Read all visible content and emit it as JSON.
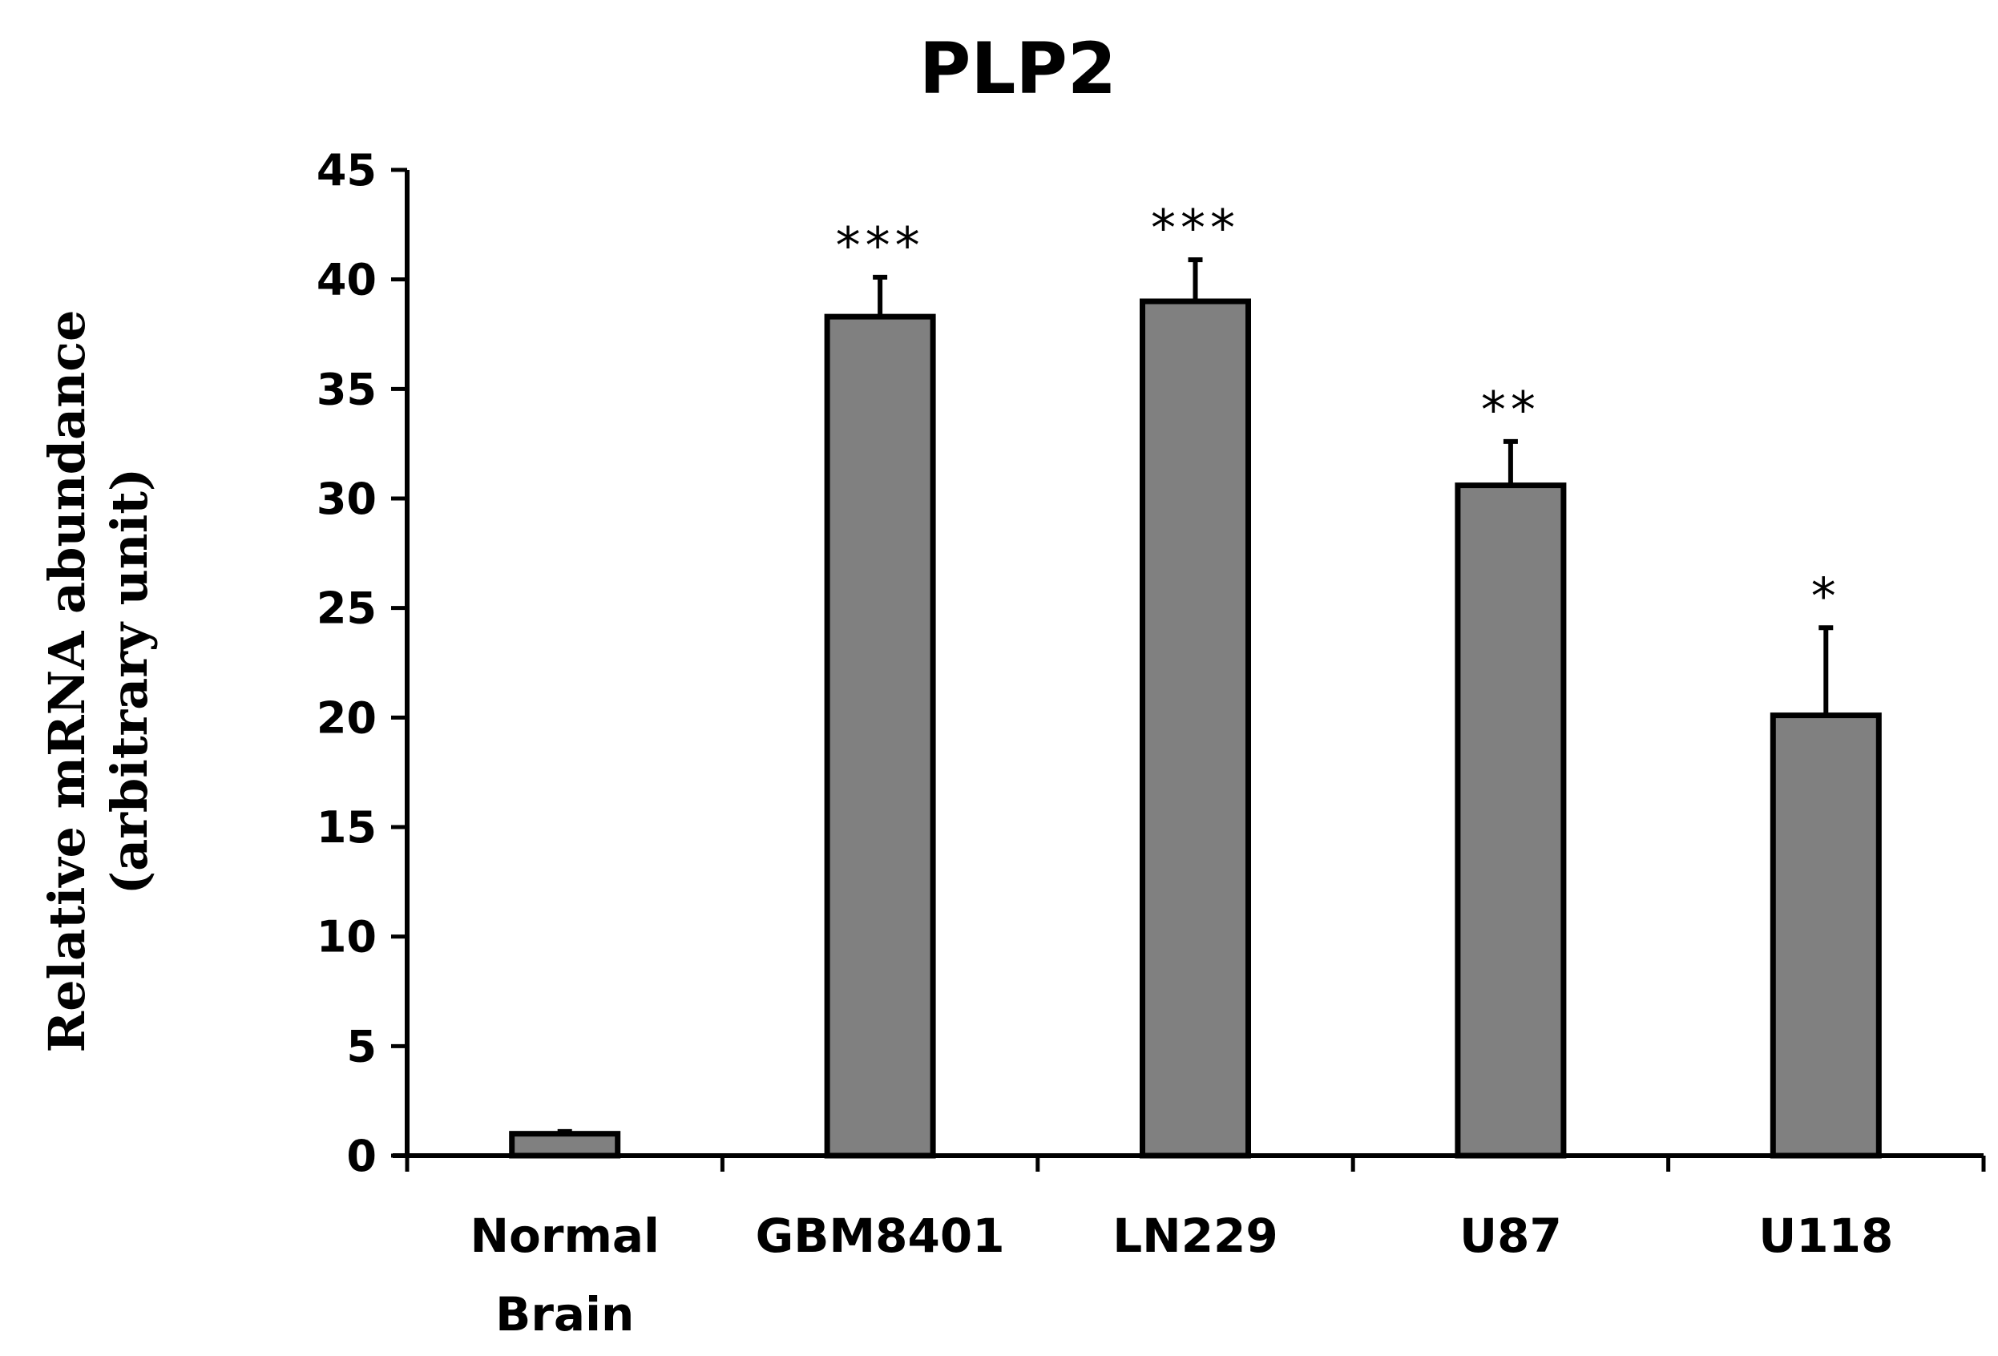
{
  "chart_data": {
    "type": "bar",
    "title": "PLP2",
    "ylabel": [
      "Relative mRNA abundance",
      "(arbitrary unit)"
    ],
    "xlabel": "",
    "ylim": [
      0,
      45
    ],
    "yticks": [
      "0",
      "5",
      "10",
      "15",
      "20",
      "25",
      "30",
      "35",
      "40",
      "45"
    ],
    "categories": [
      [
        "Normal",
        "Brain"
      ],
      [
        "GBM8401"
      ],
      [
        "LN229"
      ],
      [
        "U87"
      ],
      [
        "U118"
      ]
    ],
    "values": [
      1.0,
      38.3,
      39.0,
      30.6,
      20.1
    ],
    "errors": [
      0.1,
      1.8,
      1.9,
      2.0,
      4.0
    ],
    "significance": [
      "",
      "***",
      "***",
      "**",
      "*"
    ],
    "bar_color": "#808080",
    "grid": false,
    "legend": "none"
  }
}
